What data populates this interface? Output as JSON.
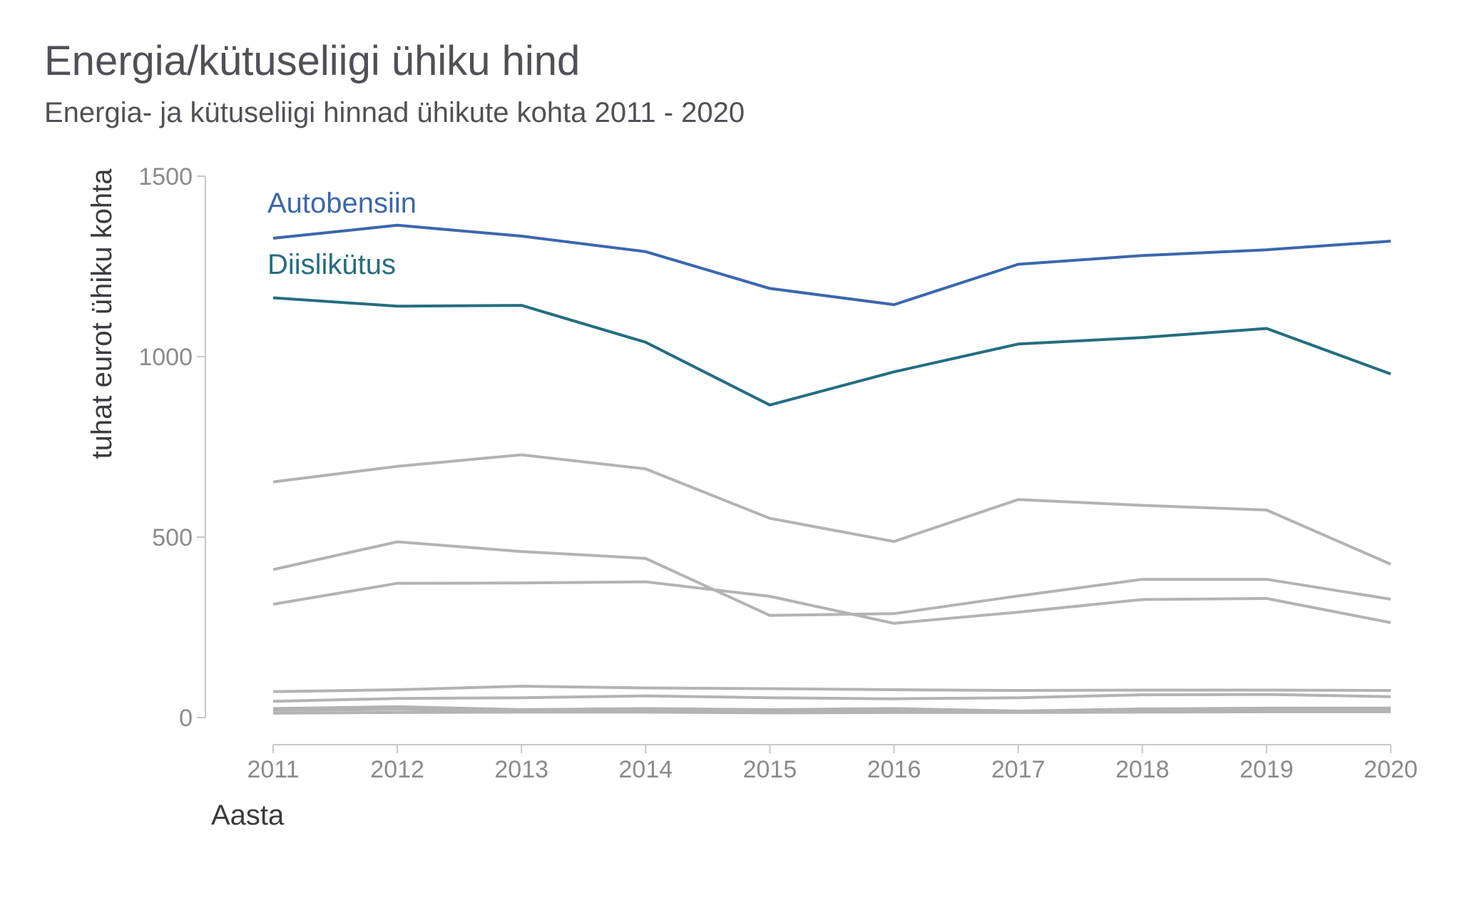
{
  "title": "Energia/kütuseliigi ühiku hind",
  "subtitle": "Energia- ja kütuseliigi hinnad ühikute kohta 2011 - 2020",
  "colors": {
    "highlight1": "#3b67ad",
    "highlight2": "#246e7f",
    "background": "#b3b3b3",
    "axis": "#c8c8c8",
    "tick_text": "#8a8a8f",
    "title_text": "#505057"
  },
  "chart_data": {
    "type": "line",
    "title": "Energia/kütuseliigi ühiku hind",
    "subtitle": "Energia- ja kütuseliigi hinnad ühikute kohta 2011 - 2020",
    "xlabel": "Aasta",
    "ylabel": "tuhat eurot ühiku kohta",
    "x": [
      2011,
      2012,
      2013,
      2014,
      2015,
      2016,
      2017,
      2018,
      2019,
      2020
    ],
    "xlim": [
      2011,
      2020
    ],
    "ylim": [
      0,
      1500
    ],
    "yticks": [
      0,
      500,
      1000,
      1500
    ],
    "grid": false,
    "legend": "direct labels top-left",
    "series": [
      {
        "name": "Autobensiin",
        "highlight": true,
        "color": "#3b67ad",
        "values": [
          1328,
          1364,
          1334,
          1291,
          1189,
          1144,
          1256,
          1280,
          1296,
          1320
        ]
      },
      {
        "name": "Diislikütus",
        "highlight": true,
        "color": "#246e7f",
        "values": [
          1163,
          1140,
          1142,
          1040,
          866,
          958,
          1035,
          1053,
          1078,
          952
        ]
      },
      {
        "color": "#b3b3b3",
        "values": [
          653,
          696,
          728,
          689,
          552,
          488,
          604,
          588,
          575,
          425
        ]
      },
      {
        "color": "#b3b3b3",
        "values": [
          410,
          487,
          460,
          441,
          283,
          288,
          337,
          383,
          383,
          328
        ]
      },
      {
        "color": "#b3b3b3",
        "values": [
          314,
          372,
          373,
          376,
          336,
          261,
          292,
          327,
          330,
          263
        ]
      },
      {
        "color": "#b3b3b3",
        "values": [
          72,
          77,
          87,
          82,
          80,
          77,
          75,
          76,
          76,
          75
        ]
      },
      {
        "color": "#b3b3b3",
        "values": [
          45,
          53,
          55,
          60,
          55,
          52,
          55,
          63,
          64,
          58
        ]
      },
      {
        "color": "#b3b3b3",
        "values": [
          25,
          30,
          22,
          25,
          22,
          25,
          18,
          24,
          26,
          26
        ]
      },
      {
        "color": "#b3b3b3",
        "values": [
          20,
          23,
          18,
          20,
          17,
          20,
          16,
          18,
          21,
          22
        ]
      },
      {
        "color": "#b3b3b3",
        "values": [
          12,
          14,
          15,
          15,
          13,
          14,
          14,
          15,
          16,
          16
        ]
      }
    ]
  }
}
